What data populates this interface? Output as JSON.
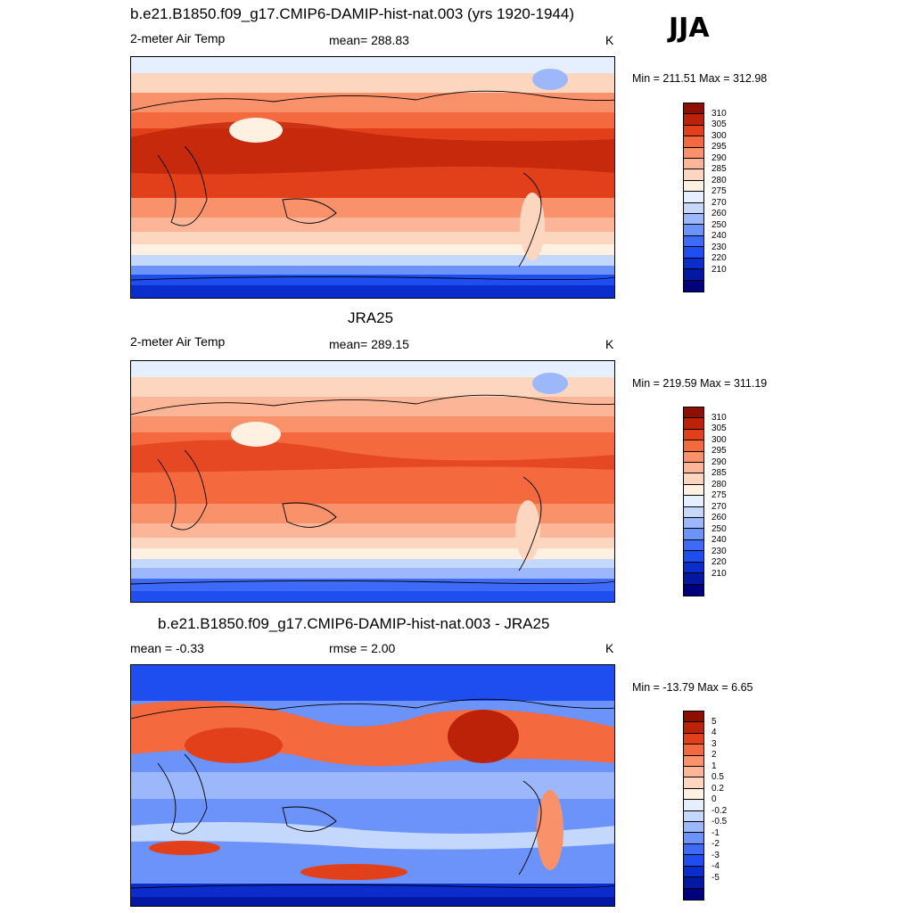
{
  "season": "JJA",
  "colors": {
    "temp_scale": [
      "#00007f",
      "#0518a3",
      "#0a2dcc",
      "#1e4ef0",
      "#3e6af8",
      "#6b93fa",
      "#9cb8fb",
      "#c4d7fc",
      "#e6efff",
      "#fff1e2",
      "#fdd6c0",
      "#fcb596",
      "#f9916a",
      "#f46a3e",
      "#e1401b",
      "#bc2208",
      "#8d0f02"
    ],
    "diff_scale": [
      "#00007f",
      "#0518a3",
      "#0a2dcc",
      "#1e4ef0",
      "#3e6af8",
      "#6b93fa",
      "#9cb8fb",
      "#c4d7fc",
      "#e6efff",
      "#fff1e2",
      "#fdd6c0",
      "#fcb596",
      "#f9916a",
      "#f46a3e",
      "#e1401b",
      "#bc2208",
      "#8d0f02"
    ]
  },
  "panels": [
    {
      "title": "b.e21.B1850.f09_g17.CMIP6-DAMIP-hist-nat.003 (yrs 1920-1944)",
      "left_label": "2-meter Air Temp",
      "center_label": "mean= 288.83",
      "units": "K",
      "minmax": "Min = 211.51 Max = 312.98",
      "field_min": 211.51,
      "field_max": 312.98,
      "colorbar_labels": [
        "310",
        "305",
        "300",
        "295",
        "290",
        "285",
        "280",
        "275",
        "270",
        "260",
        "250",
        "240",
        "230",
        "220",
        "210"
      ]
    },
    {
      "title": "JRA25",
      "left_label": "2-meter Air Temp",
      "center_label": "mean= 289.15",
      "units": "K",
      "minmax": "Min = 219.59 Max = 311.19",
      "field_min": 219.59,
      "field_max": 311.19,
      "colorbar_labels": [
        "310",
        "305",
        "300",
        "295",
        "290",
        "285",
        "280",
        "275",
        "270",
        "260",
        "250",
        "240",
        "230",
        "220",
        "210"
      ]
    },
    {
      "title": "b.e21.B1850.f09_g17.CMIP6-DAMIP-hist-nat.003 - JRA25",
      "left_label": "mean =  -0.33",
      "center_label": "rmse =   2.00",
      "units": "K",
      "minmax": "Min = -13.79 Max =   6.65",
      "field_min": -13.79,
      "field_max": 6.65,
      "colorbar_labels": [
        "5",
        "4",
        "3",
        "2",
        "1",
        "0.5",
        "0.2",
        "0",
        "-0.2",
        "-0.5",
        "-1",
        "-2",
        "-3",
        "-4",
        "-5"
      ]
    }
  ]
}
